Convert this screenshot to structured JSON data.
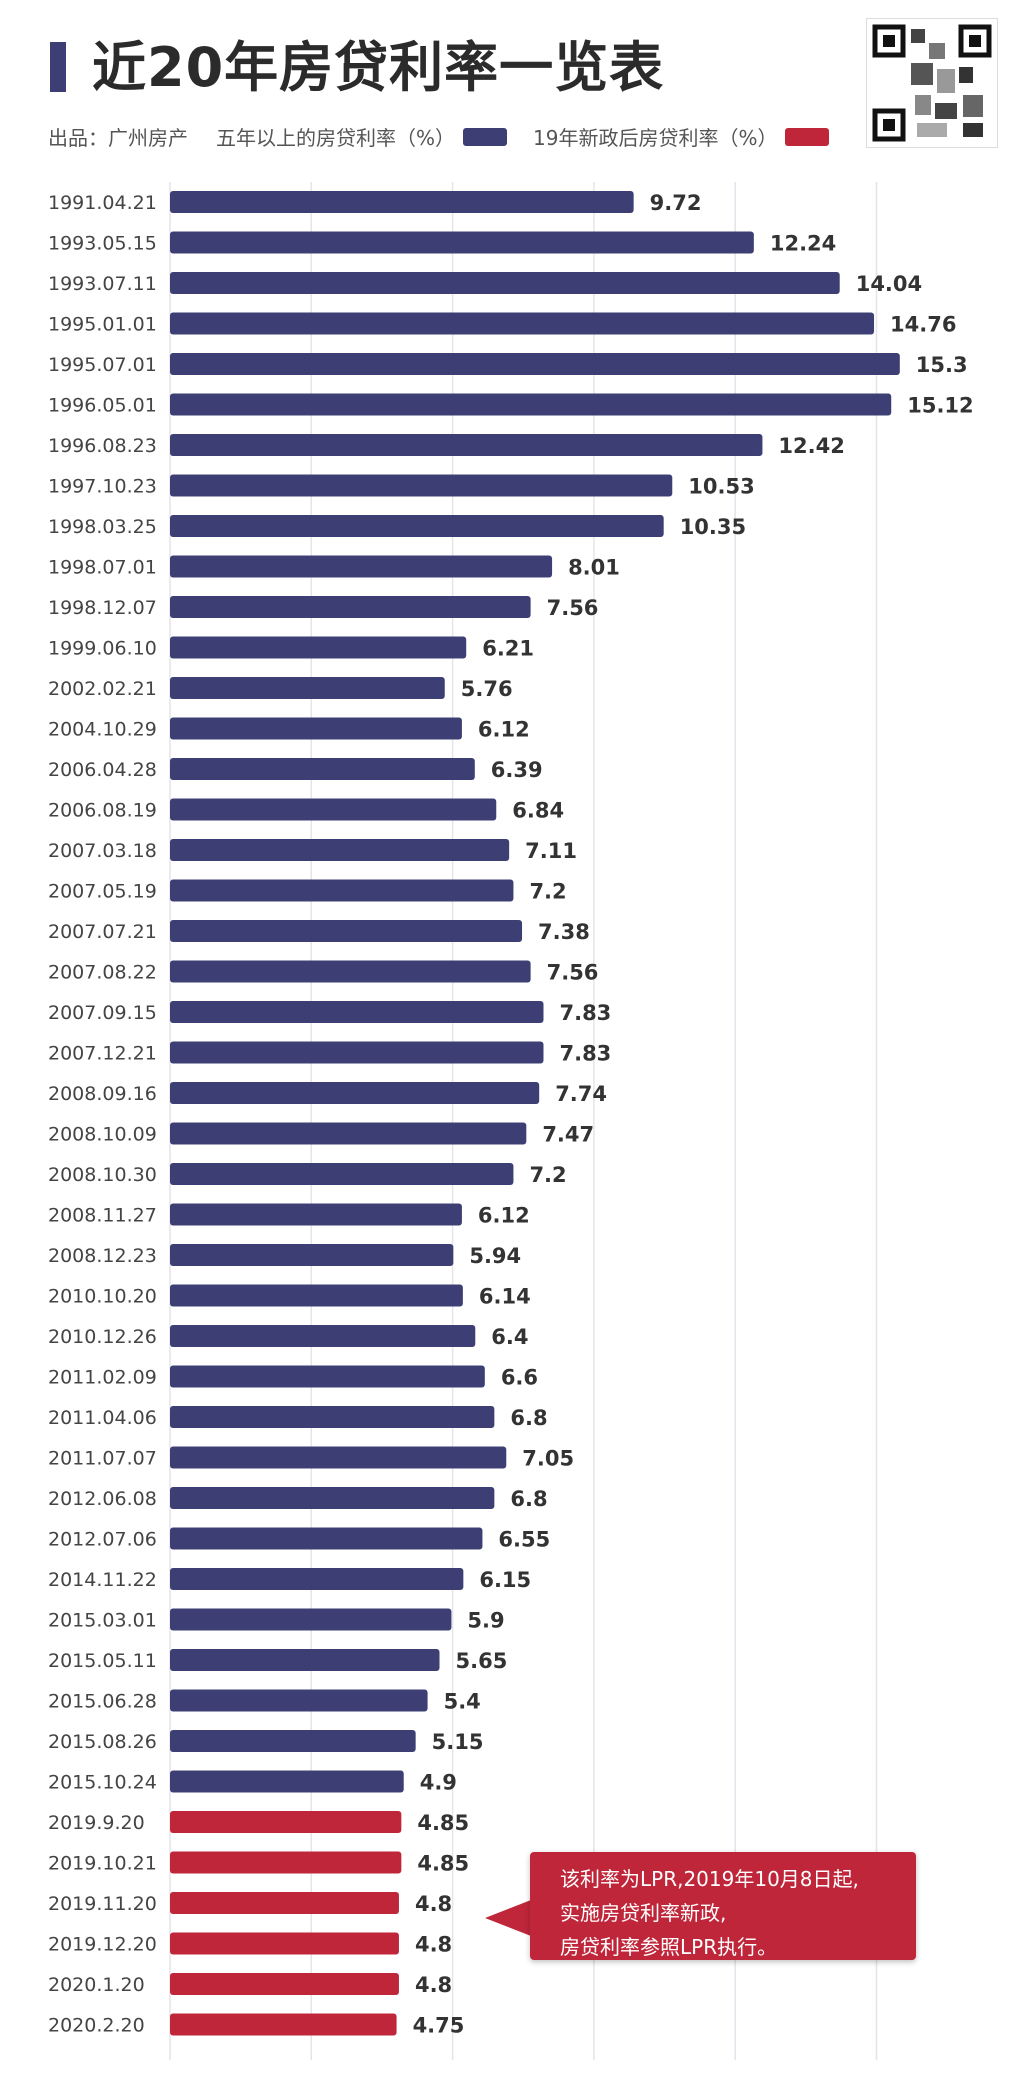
{
  "header": {
    "title": "近20年房贷利率一览表",
    "source": "出品：广州房产",
    "legend_1": "五年以上的房贷利率（%）",
    "legend_2": "19年新政后房贷利率（%）"
  },
  "callout": {
    "line1": "该利率为LPR,2019年10月8日起,",
    "line2": "实施房贷利率新政,",
    "line3": "房贷利率参照LPR执行。"
  },
  "colors": {
    "series_old": "#3d3f74",
    "series_new": "#c0263a",
    "title_bar": "#3d3f74"
  },
  "chart_data": {
    "type": "bar",
    "orientation": "horizontal",
    "xlim": [
      0,
      25
    ],
    "grid": true,
    "series": [
      {
        "name": "五年以上的房贷利率（%）",
        "color": "#3d3f74"
      },
      {
        "name": "19年新政后房贷利率（%）",
        "color": "#c0263a"
      }
    ],
    "categories": [
      "1991.04.21",
      "1993.05.15",
      "1993.07.11",
      "1995.01.01",
      "1995.07.01",
      "1996.05.01",
      "1996.08.23",
      "1997.10.23",
      "1998.03.25",
      "1998.07.01",
      "1998.12.07",
      "1999.06.10",
      "2002.02.21",
      "2004.10.29",
      "2006.04.28",
      "2006.08.19",
      "2007.03.18",
      "2007.05.19",
      "2007.07.21",
      "2007.08.22",
      "2007.09.15",
      "2007.12.21",
      "2008.09.16",
      "2008.10.09",
      "2008.10.30",
      "2008.11.27",
      "2008.12.23",
      "2010.10.20",
      "2010.12.26",
      "2011.02.09",
      "2011.04.06",
      "2011.07.07",
      "2012.06.08",
      "2012.07.06",
      "2014.11.22",
      "2015.03.01",
      "2015.05.11",
      "2015.06.28",
      "2015.08.26",
      "2015.10.24",
      "2019.9.20",
      "2019.10.21",
      "2019.11.20",
      "2019.12.20",
      "2020.1.20",
      "2020.2.20"
    ],
    "value_labels": [
      "9.72",
      "12.24",
      "14.04",
      "14.76",
      "15.3",
      "15.12",
      "12.42",
      "10.53",
      "10.35",
      "8.01",
      "7.56",
      "6.21",
      "5.76",
      "6.12",
      "6.39",
      "6.84",
      "7.11",
      "7.2",
      "7.38",
      "7.56",
      "7.83",
      "7.83",
      "7.74",
      "7.47",
      "7.2",
      "6.12",
      "5.94",
      "6.14",
      "6.4",
      "6.6",
      "6.8",
      "7.05",
      "6.8",
      "6.55",
      "6.15",
      "5.9",
      "5.65",
      "5.4",
      "5.15",
      "4.9",
      "4.85",
      "4.85",
      "4.8",
      "4.8",
      "4.8",
      "4.75"
    ],
    "values": [
      9.72,
      12.24,
      14.04,
      14.76,
      15.3,
      15.12,
      12.42,
      10.53,
      10.35,
      8.01,
      7.56,
      6.21,
      5.76,
      6.12,
      6.39,
      6.84,
      7.11,
      7.2,
      7.38,
      7.56,
      7.83,
      7.83,
      7.74,
      7.47,
      7.2,
      6.12,
      5.94,
      6.14,
      6.4,
      6.6,
      6.8,
      7.05,
      6.8,
      6.55,
      6.15,
      5.9,
      5.65,
      5.4,
      5.15,
      4.9,
      4.85,
      4.85,
      4.8,
      4.8,
      4.8,
      4.75
    ],
    "series_index": [
      0,
      0,
      0,
      0,
      0,
      0,
      0,
      0,
      0,
      0,
      0,
      0,
      0,
      0,
      0,
      0,
      0,
      0,
      0,
      0,
      0,
      0,
      0,
      0,
      0,
      0,
      0,
      0,
      0,
      0,
      0,
      0,
      0,
      0,
      0,
      0,
      0,
      0,
      0,
      0,
      1,
      1,
      1,
      1,
      1,
      1
    ]
  }
}
